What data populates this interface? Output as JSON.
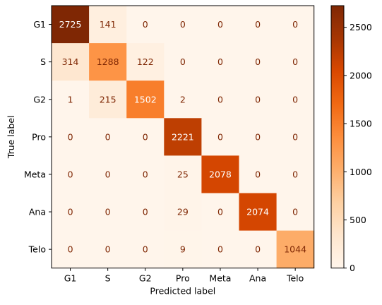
{
  "chart_data": {
    "type": "heatmap",
    "title": "",
    "xlabel": "Predicted label",
    "ylabel": "True label",
    "x_categories": [
      "G1",
      "S",
      "G2",
      "Pro",
      "Meta",
      "Ana",
      "Telo"
    ],
    "y_categories": [
      "G1",
      "S",
      "G2",
      "Pro",
      "Meta",
      "Ana",
      "Telo"
    ],
    "matrix": [
      [
        2725,
        141,
        0,
        0,
        0,
        0,
        0
      ],
      [
        314,
        1288,
        122,
        0,
        0,
        0,
        0
      ],
      [
        1,
        215,
        1502,
        2,
        0,
        0,
        0
      ],
      [
        0,
        0,
        0,
        2221,
        0,
        0,
        0
      ],
      [
        0,
        0,
        0,
        25,
        2078,
        0,
        0
      ],
      [
        0,
        0,
        0,
        29,
        0,
        2074,
        0
      ],
      [
        0,
        0,
        0,
        9,
        0,
        0,
        1044
      ]
    ],
    "colormap": "Oranges",
    "colorbar": {
      "min": 0,
      "max": 2725,
      "ticks": [
        0,
        500,
        1000,
        1500,
        2000,
        2500
      ]
    },
    "colors": {
      "low": "#fff5eb",
      "high": "#7f2704",
      "text_dark": "#7f2704",
      "text_light": "#ffffff"
    }
  }
}
